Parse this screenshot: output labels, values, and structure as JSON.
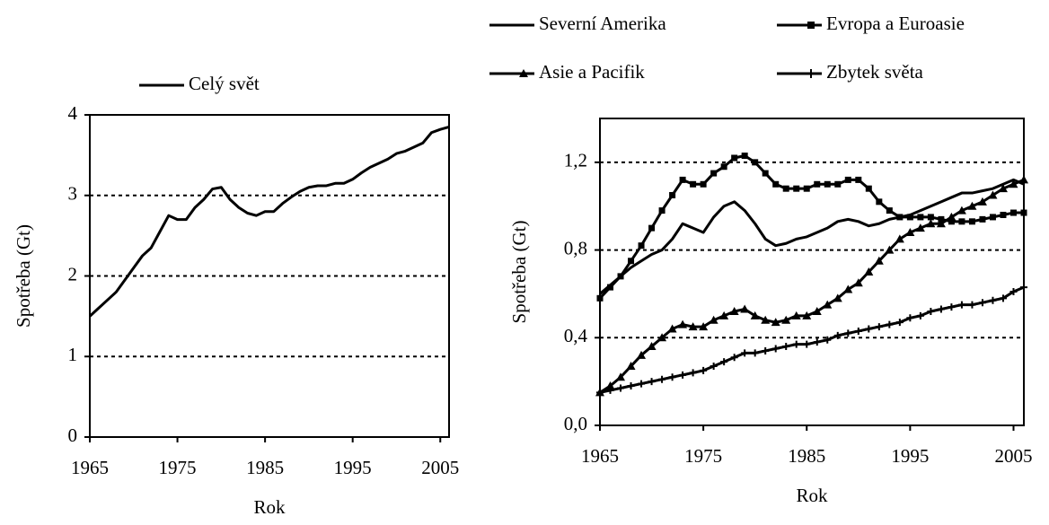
{
  "chart_data": [
    {
      "type": "line",
      "legend": "top",
      "x": [
        1965,
        1966,
        1967,
        1968,
        1969,
        1970,
        1971,
        1972,
        1973,
        1974,
        1975,
        1976,
        1977,
        1978,
        1979,
        1980,
        1981,
        1982,
        1983,
        1984,
        1985,
        1986,
        1987,
        1988,
        1989,
        1990,
        1991,
        1992,
        1993,
        1994,
        1995,
        1996,
        1997,
        1998,
        1999,
        2000,
        2001,
        2002,
        2003,
        2004,
        2005,
        2006
      ],
      "series": [
        {
          "name": "Celý svět",
          "color": "#000000",
          "marker": "none",
          "values": [
            1.5,
            1.6,
            1.7,
            1.8,
            1.95,
            2.1,
            2.25,
            2.35,
            2.55,
            2.75,
            2.7,
            2.7,
            2.85,
            2.95,
            3.08,
            3.1,
            2.95,
            2.85,
            2.78,
            2.75,
            2.8,
            2.8,
            2.9,
            2.98,
            3.05,
            3.1,
            3.12,
            3.12,
            3.15,
            3.15,
            3.2,
            3.28,
            3.35,
            3.4,
            3.45,
            3.52,
            3.55,
            3.6,
            3.65,
            3.78,
            3.82,
            3.85
          ]
        }
      ],
      "xlabel": "Rok",
      "ylabel": "Spotřeba (Gt)",
      "xlim": [
        1965,
        2006
      ],
      "xticks": [
        1965,
        1975,
        1985,
        1995,
        2005
      ],
      "ylim": [
        0,
        4
      ],
      "yticks": [
        0,
        1,
        2,
        3,
        4
      ],
      "grid": true
    },
    {
      "type": "line",
      "legend": "top",
      "x": [
        1965,
        1966,
        1967,
        1968,
        1969,
        1970,
        1971,
        1972,
        1973,
        1974,
        1975,
        1976,
        1977,
        1978,
        1979,
        1980,
        1981,
        1982,
        1983,
        1984,
        1985,
        1986,
        1987,
        1988,
        1989,
        1990,
        1991,
        1992,
        1993,
        1994,
        1995,
        1996,
        1997,
        1998,
        1999,
        2000,
        2001,
        2002,
        2003,
        2004,
        2005,
        2006
      ],
      "series": [
        {
          "name": "Severní Amerika",
          "color": "#000000",
          "marker": "none",
          "values": [
            0.6,
            0.64,
            0.68,
            0.72,
            0.75,
            0.78,
            0.8,
            0.85,
            0.92,
            0.9,
            0.88,
            0.95,
            1.0,
            1.02,
            0.98,
            0.92,
            0.85,
            0.82,
            0.83,
            0.85,
            0.86,
            0.88,
            0.9,
            0.93,
            0.94,
            0.93,
            0.91,
            0.92,
            0.94,
            0.95,
            0.96,
            0.98,
            1.0,
            1.02,
            1.04,
            1.06,
            1.06,
            1.07,
            1.08,
            1.1,
            1.12,
            1.1
          ]
        },
        {
          "name": "Evropa a Euroasie",
          "color": "#000000",
          "marker": "square",
          "values": [
            0.58,
            0.63,
            0.68,
            0.75,
            0.82,
            0.9,
            0.98,
            1.05,
            1.12,
            1.1,
            1.1,
            1.15,
            1.18,
            1.22,
            1.23,
            1.2,
            1.15,
            1.1,
            1.08,
            1.08,
            1.08,
            1.1,
            1.1,
            1.1,
            1.12,
            1.12,
            1.08,
            1.02,
            0.98,
            0.95,
            0.95,
            0.95,
            0.95,
            0.94,
            0.93,
            0.93,
            0.93,
            0.94,
            0.95,
            0.96,
            0.97,
            0.97
          ]
        },
        {
          "name": "Asie a Pacifik",
          "color": "#000000",
          "marker": "triangle",
          "values": [
            0.15,
            0.18,
            0.22,
            0.27,
            0.32,
            0.36,
            0.4,
            0.44,
            0.46,
            0.45,
            0.45,
            0.48,
            0.5,
            0.52,
            0.53,
            0.5,
            0.48,
            0.47,
            0.48,
            0.5,
            0.5,
            0.52,
            0.55,
            0.58,
            0.62,
            0.65,
            0.7,
            0.75,
            0.8,
            0.85,
            0.88,
            0.9,
            0.92,
            0.92,
            0.95,
            0.98,
            1.0,
            1.02,
            1.05,
            1.08,
            1.1,
            1.12
          ]
        },
        {
          "name": "Zbytek světa",
          "color": "#000000",
          "marker": "plus",
          "values": [
            0.15,
            0.16,
            0.17,
            0.18,
            0.19,
            0.2,
            0.21,
            0.22,
            0.23,
            0.24,
            0.25,
            0.27,
            0.29,
            0.31,
            0.33,
            0.33,
            0.34,
            0.35,
            0.36,
            0.37,
            0.37,
            0.38,
            0.39,
            0.41,
            0.42,
            0.43,
            0.44,
            0.45,
            0.46,
            0.47,
            0.49,
            0.5,
            0.52,
            0.53,
            0.54,
            0.55,
            0.55,
            0.56,
            0.57,
            0.58,
            0.61,
            0.63
          ]
        }
      ],
      "xlabel": "Rok",
      "ylabel": "Spotřeba (Gt)",
      "xlim": [
        1965,
        2006
      ],
      "xticks": [
        1965,
        1975,
        1985,
        1995,
        2005
      ],
      "ylim": [
        0,
        1.4
      ],
      "yticks": [
        {
          "value": 0,
          "label": "0,0"
        },
        {
          "value": 0.4,
          "label": "0,4"
        },
        {
          "value": 0.8,
          "label": "0,8"
        },
        {
          "value": 1.2,
          "label": "1,2"
        }
      ],
      "grid": true
    }
  ]
}
